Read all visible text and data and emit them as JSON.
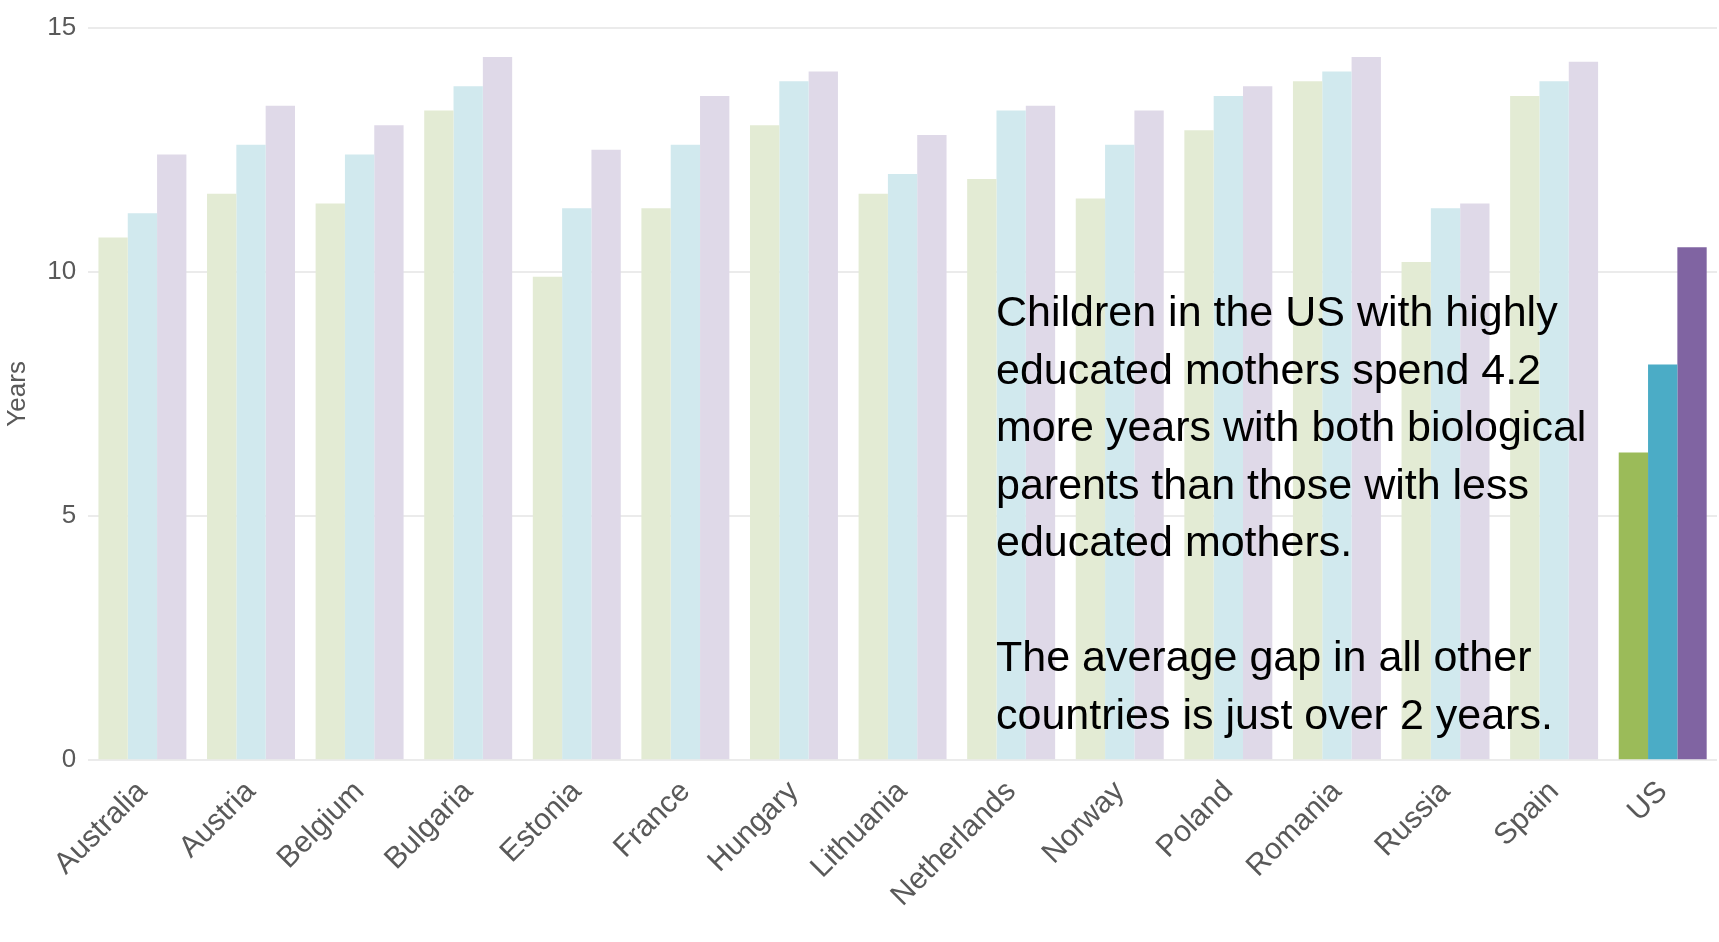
{
  "chart_data": {
    "type": "bar",
    "ylabel": "Years",
    "categories": [
      "Australia",
      "Austria",
      "Belgium",
      "Bulgaria",
      "Estonia",
      "France",
      "Hungary",
      "Lithuania",
      "Netherlands",
      "Norway",
      "Poland",
      "Romania",
      "Russia",
      "Spain",
      "US"
    ],
    "series": [
      {
        "values": [
          10.7,
          11.6,
          11.4,
          13.3,
          9.9,
          11.3,
          13.0,
          11.6,
          11.9,
          11.5,
          12.9,
          13.9,
          10.2,
          13.6,
          6.3
        ],
        "colors": [
          "#e3ebd4",
          "#e3ebd4",
          "#e3ebd4",
          "#e3ebd4",
          "#e3ebd4",
          "#e3ebd4",
          "#e3ebd4",
          "#e3ebd4",
          "#e3ebd4",
          "#e3ebd4",
          "#e3ebd4",
          "#e3ebd4",
          "#e3ebd4",
          "#e3ebd4",
          "#9bbb59"
        ]
      },
      {
        "values": [
          11.2,
          12.6,
          12.4,
          13.8,
          11.3,
          12.6,
          13.9,
          12.0,
          13.3,
          12.6,
          13.6,
          14.1,
          11.3,
          13.9,
          8.1
        ],
        "colors": [
          "#d1e9ee",
          "#d1e9ee",
          "#d1e9ee",
          "#d1e9ee",
          "#d1e9ee",
          "#d1e9ee",
          "#d1e9ee",
          "#d1e9ee",
          "#d1e9ee",
          "#d1e9ee",
          "#d1e9ee",
          "#d1e9ee",
          "#d1e9ee",
          "#d1e9ee",
          "#4bacc6"
        ]
      },
      {
        "values": [
          12.4,
          13.4,
          13.0,
          14.4,
          12.5,
          13.6,
          14.1,
          12.8,
          13.4,
          13.3,
          13.8,
          14.4,
          11.4,
          14.3,
          10.5
        ],
        "colors": [
          "#dfd9e8",
          "#dfd9e8",
          "#dfd9e8",
          "#dfd9e8",
          "#dfd9e8",
          "#dfd9e8",
          "#dfd9e8",
          "#dfd9e8",
          "#dfd9e8",
          "#dfd9e8",
          "#dfd9e8",
          "#dfd9e8",
          "#dfd9e8",
          "#dfd9e8",
          "#8064a2"
        ]
      }
    ],
    "ylim": [
      0,
      15
    ],
    "yticks": [
      0,
      5,
      10,
      15
    ],
    "grid": "y",
    "annotations": [
      "Children in the US with highly educated mothers spend 4.2 more years with both biological parents than those with less educated mothers.",
      "The average gap in all other countries is just over 2 years."
    ]
  }
}
